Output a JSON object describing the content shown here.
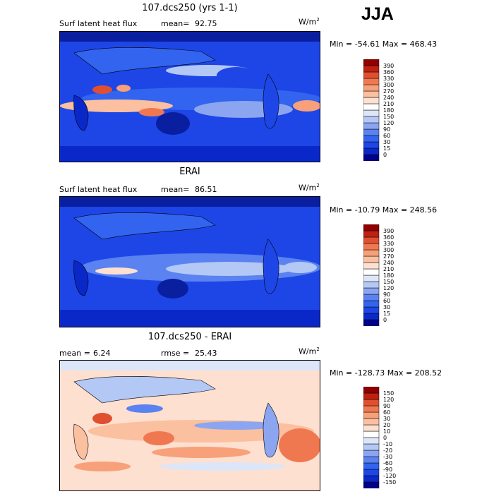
{
  "season": "JJA",
  "chart_data": [
    {
      "type": "heatmap",
      "title": "107.dcs250 (yrs 1-1)",
      "variable": "Surf latent heat flux",
      "stat1_label": "mean=",
      "stat1_value": "92.75",
      "units": "W/m",
      "units_exp": "2",
      "min_label": "Min =",
      "min_value": "-54.61",
      "max_label": "Max =",
      "max_value": "468.43",
      "colorbar_levels": [
        "0",
        "15",
        "30",
        "60",
        "90",
        "120",
        "150",
        "180",
        "210",
        "240",
        "270",
        "300",
        "330",
        "360",
        "390"
      ],
      "colorbar_colors": [
        "#00008b",
        "#0a28c8",
        "#1e46e6",
        "#3264f0",
        "#5a82f0",
        "#8ca5f0",
        "#b4c8f5",
        "#dce6f8",
        "#ffffff",
        "#fde0d0",
        "#fbc0a0",
        "#f7a07a",
        "#f07850",
        "#e05030",
        "#c02010",
        "#900000"
      ]
    },
    {
      "type": "heatmap",
      "title": "ERAI",
      "variable": "Surf latent heat flux",
      "stat1_label": "mean=",
      "stat1_value": "86.51",
      "units": "W/m",
      "units_exp": "2",
      "min_label": "Min =",
      "min_value": "-10.79",
      "max_label": "Max =",
      "max_value": "248.56",
      "colorbar_levels": [
        "0",
        "15",
        "30",
        "60",
        "90",
        "120",
        "150",
        "180",
        "210",
        "240",
        "270",
        "300",
        "330",
        "360",
        "390"
      ],
      "colorbar_colors": [
        "#00008b",
        "#0a28c8",
        "#1e46e6",
        "#3264f0",
        "#5a82f0",
        "#8ca5f0",
        "#b4c8f5",
        "#dce6f8",
        "#ffffff",
        "#fde0d0",
        "#fbc0a0",
        "#f7a07a",
        "#f07850",
        "#e05030",
        "#c02010",
        "#900000"
      ]
    },
    {
      "type": "heatmap",
      "title": "107.dcs250 - ERAI",
      "stat1_label": "mean =",
      "stat1_value": "6.24",
      "stat2_label": "rmse =",
      "stat2_value": "25.43",
      "units": "W/m",
      "units_exp": "2",
      "min_label": "Min =",
      "min_value": "-128.73",
      "max_label": "Max =",
      "max_value": "208.52",
      "colorbar_levels": [
        "-150",
        "-120",
        "-90",
        "-60",
        "-30",
        "-20",
        "-10",
        "0",
        "10",
        "20",
        "30",
        "60",
        "90",
        "120",
        "150"
      ],
      "colorbar_colors": [
        "#00008b",
        "#0a28c8",
        "#1e46e6",
        "#3264f0",
        "#5a82f0",
        "#8ca5f0",
        "#b4c8f5",
        "#dce6f8",
        "#ffffff",
        "#fde0d0",
        "#fbc0a0",
        "#f7a07a",
        "#f07850",
        "#e05030",
        "#c02010",
        "#900000"
      ]
    }
  ]
}
